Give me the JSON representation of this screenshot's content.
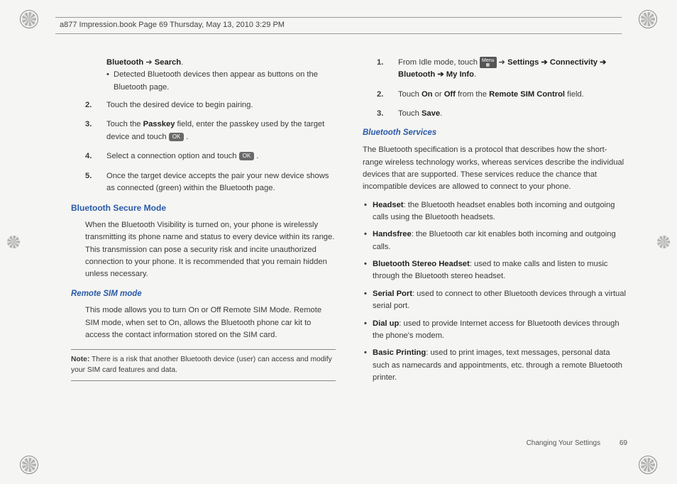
{
  "header": "a877 Impression.book  Page 69  Thursday, May 13, 2010  3:29 PM",
  "left": {
    "top_line": {
      "pre": "Bluetooth",
      "arrow": "➔",
      "post": "Search",
      "tail": "."
    },
    "sub_bullet": "Detected Bluetooth devices then appear as buttons on the Bluetooth page.",
    "steps": [
      {
        "n": "2.",
        "text": "Touch the desired device to begin pairing."
      },
      {
        "n": "3.",
        "html": "Touch the <b>Passkey</b> field, enter the passkey used by the target device and touch ",
        "ok": "OK",
        "tail": " ."
      },
      {
        "n": "4.",
        "html": "Select a connection option and touch ",
        "ok": "OK",
        "tail": " ."
      },
      {
        "n": "5.",
        "text": "Once the target device accepts the pair your new device shows as connected (green) within the Bluetooth page."
      }
    ],
    "sec1_title": "Bluetooth Secure Mode",
    "sec1_body": "When the Bluetooth Visibility is turned on, your phone is wirelessly transmitting its phone name and status to every device within its range. This transmission can pose a security risk and incite unauthorized connection to your phone. It is recommended that you remain hidden unless necessary.",
    "sec2_title": "Remote SIM mode",
    "sec2_body": "This mode allows you to turn On or Off Remote SIM Mode. Remote SIM mode, when set to On, allows the Bluetooth phone car kit to access the contact information stored on the SIM card.",
    "note_label": "Note:",
    "note_body": " There is a risk that another Bluetooth device (user) can access and modify your SIM card features and data."
  },
  "right": {
    "steps": [
      {
        "n": "1.",
        "pre": "From Idle mode, touch ",
        "menu_label": "Menu",
        "arrow": " ➔ ",
        "chain": "Settings ➔ Connectivity ➔ Bluetooth ➔ My Info",
        "tail": "."
      },
      {
        "n": "2.",
        "html": "Touch <b>On</b> or <b>Off</b> from the <b>Remote SIM Control</b> field."
      },
      {
        "n": "3.",
        "html": "Touch <b>Save</b>."
      }
    ],
    "svc_title": "Bluetooth Services",
    "svc_intro": "The Bluetooth specification is a protocol that describes how the short-range wireless technology works, whereas services describe the individual devices that are supported. These services reduce the chance that incompatible devices are allowed to connect to your phone.",
    "services": [
      {
        "name": "Headset",
        "desc": ": the Bluetooth headset enables both incoming and outgoing calls using the Bluetooth headsets."
      },
      {
        "name": "Handsfree",
        "desc": ": the Bluetooth car kit enables both incoming and outgoing calls."
      },
      {
        "name": "Bluetooth Stereo Headset",
        "desc": ": used to make calls and listen to music through the Bluetooth stereo headset."
      },
      {
        "name": "Serial Port",
        "desc": ": used to connect to other Bluetooth devices through a virtual serial port."
      },
      {
        "name": "Dial up",
        "desc": ": used to provide Internet access for Bluetooth devices through the phone's modem."
      },
      {
        "name": "Basic Printing",
        "desc": ": used to print images, text messages, personal data such as namecards and appointments, etc. through a remote Bluetooth printer."
      }
    ],
    "footer_section": "Changing Your Settings",
    "footer_page": "69"
  }
}
